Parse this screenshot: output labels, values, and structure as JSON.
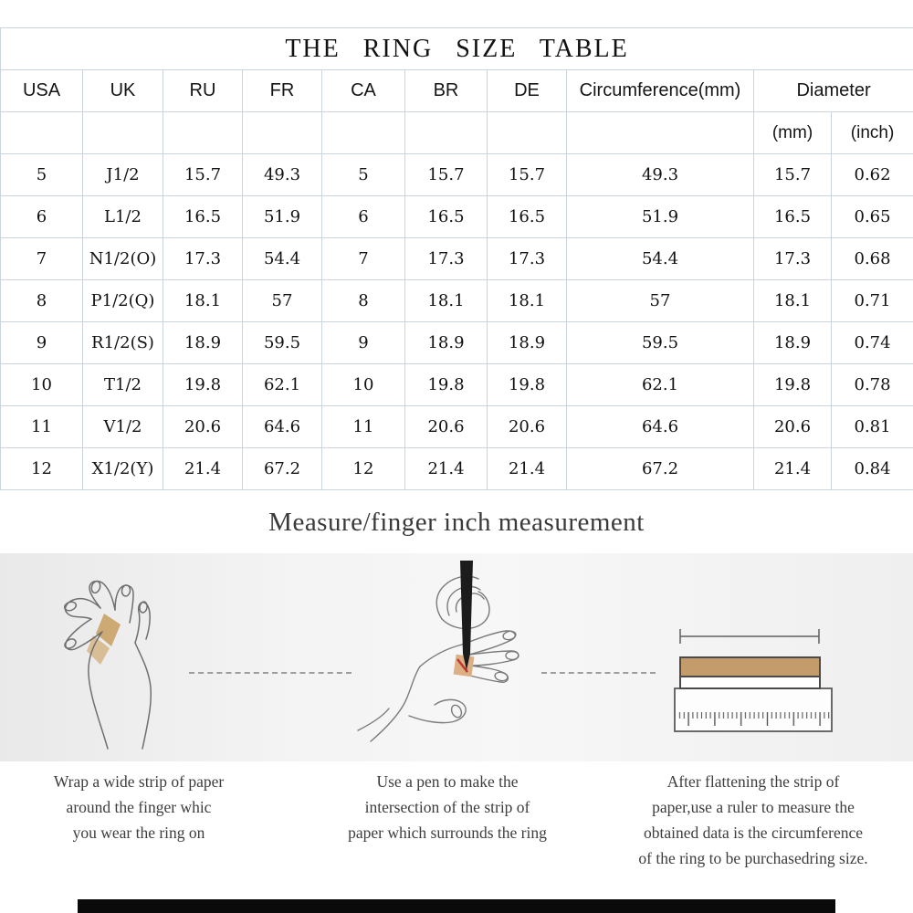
{
  "table": {
    "title": "THE RING SIZE TABLE",
    "headers": [
      "USA",
      "UK",
      "RU",
      "FR",
      "CA",
      "BR",
      "DE",
      "Circumference(mm)",
      "Diameter"
    ],
    "diameter_sub": [
      "(mm)",
      "(inch)"
    ],
    "rows": [
      [
        "5",
        "J1/2",
        "15.7",
        "49.3",
        "5",
        "15.7",
        "15.7",
        "49.3",
        "15.7",
        "0.62"
      ],
      [
        "6",
        "L1/2",
        "16.5",
        "51.9",
        "6",
        "16.5",
        "16.5",
        "51.9",
        "16.5",
        "0.65"
      ],
      [
        "7",
        "N1/2(O)",
        "17.3",
        "54.4",
        "7",
        "17.3",
        "17.3",
        "54.4",
        "17.3",
        "0.68"
      ],
      [
        "8",
        "P1/2(Q)",
        "18.1",
        "57",
        "8",
        "18.1",
        "18.1",
        "57",
        "18.1",
        "0.71"
      ],
      [
        "9",
        "R1/2(S)",
        "18.9",
        "59.5",
        "9",
        "18.9",
        "18.9",
        "59.5",
        "18.9",
        "0.74"
      ],
      [
        "10",
        "T1/2",
        "19.8",
        "62.1",
        "10",
        "19.8",
        "19.8",
        "62.1",
        "19.8",
        "0.78"
      ],
      [
        "11",
        "V1/2",
        "20.6",
        "64.6",
        "11",
        "20.6",
        "20.6",
        "64.6",
        "20.6",
        "0.81"
      ],
      [
        "12",
        "X1/2(Y)",
        "21.4",
        "67.2",
        "12",
        "21.4",
        "21.4",
        "67.2",
        "21.4",
        "0.84"
      ]
    ]
  },
  "section_heading": "Measure/finger inch measurement",
  "steps": [
    {
      "icon": "hand-with-paper-strip-icon",
      "lines": [
        "Wrap a wide strip of paper",
        "around the finger whic",
        "you wear the ring on"
      ]
    },
    {
      "icon": "hand-marking-with-pen-icon",
      "lines": [
        "Use a pen to make the",
        "intersection of the strip of",
        "paper which surrounds the ring"
      ]
    },
    {
      "icon": "ruler-measuring-strip-icon",
      "lines": [
        "After flattening the strip of",
        "paper,use a ruler to measure the",
        "obtained data is the circumference",
        "of the ring to be purchasedring size."
      ]
    }
  ],
  "colors": {
    "table_border": "#ccd4e0",
    "text": "#141414",
    "strip_tan": "#c49b6a",
    "strip_tan_light": "#d9bd94",
    "pen_black": "#1c1c1c",
    "mark_red": "#c0392b",
    "outline_gray": "#6f6f6f",
    "bottom_bar": "#0a0a0a"
  }
}
